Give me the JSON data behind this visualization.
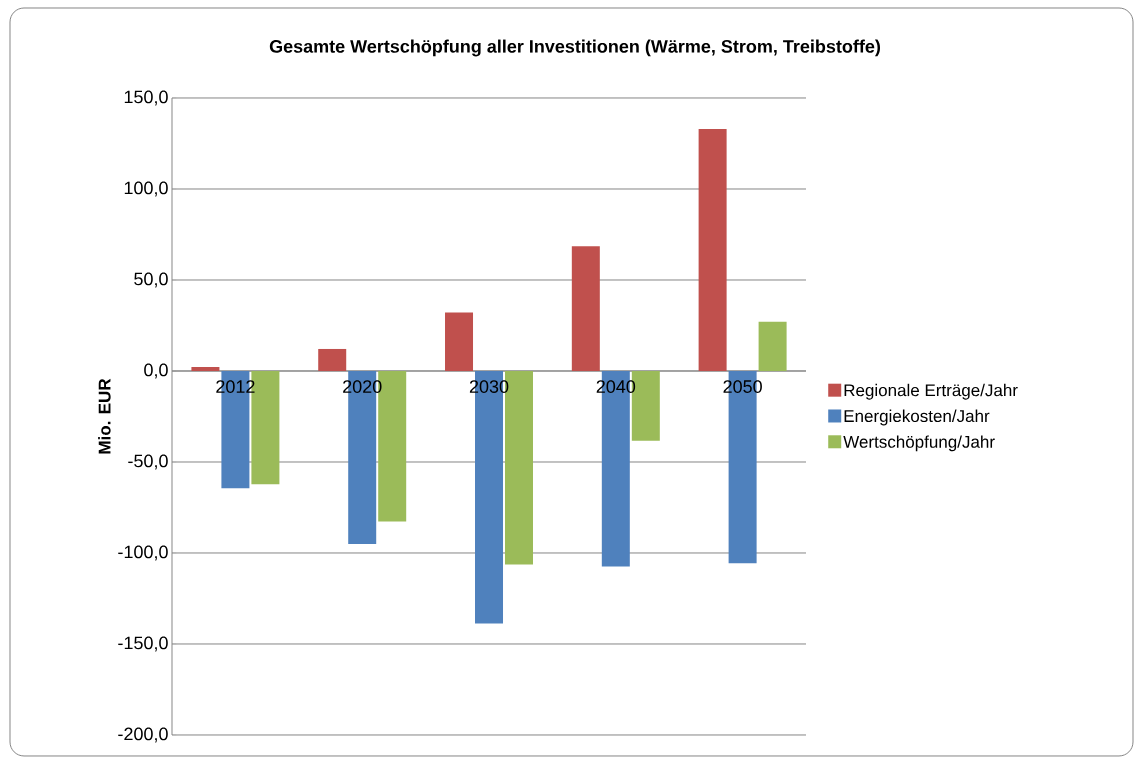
{
  "chart_data": {
    "type": "bar",
    "title": "Gesamte Wertschöpfung aller Investitionen (Wärme, Strom, Treibstoffe)",
    "ylabel": "Mio. EUR",
    "categories": [
      "2012",
      "2020",
      "2030",
      "2040",
      "2050"
    ],
    "series": [
      {
        "name": "Regionale Erträge/Jahr",
        "color": "#c0504d",
        "values": [
          2.2,
          12.1,
          32.1,
          68.6,
          133.0
        ]
      },
      {
        "name": "Energiekosten/Jahr",
        "color": "#4f81bd",
        "values": [
          -64.4,
          -95.0,
          -138.7,
          -107.4,
          -105.6
        ]
      },
      {
        "name": "Wertschöpfung/Jahr",
        "color": "#9bbb59",
        "values": [
          -62.2,
          -82.7,
          -106.3,
          -38.3,
          27.1
        ]
      }
    ],
    "ylim": [
      -200,
      150
    ],
    "yticks": [
      {
        "value": -200,
        "label": "-200,0"
      },
      {
        "value": -150,
        "label": "-150,0"
      },
      {
        "value": -100,
        "label": "-100,0"
      },
      {
        "value": -50,
        "label": "-50,0"
      },
      {
        "value": 0,
        "label": "0,0"
      },
      {
        "value": 50,
        "label": "50,0"
      },
      {
        "value": 100,
        "label": "100,0"
      },
      {
        "value": 150,
        "label": "150,0"
      }
    ],
    "grid": "y",
    "legend": "right"
  }
}
